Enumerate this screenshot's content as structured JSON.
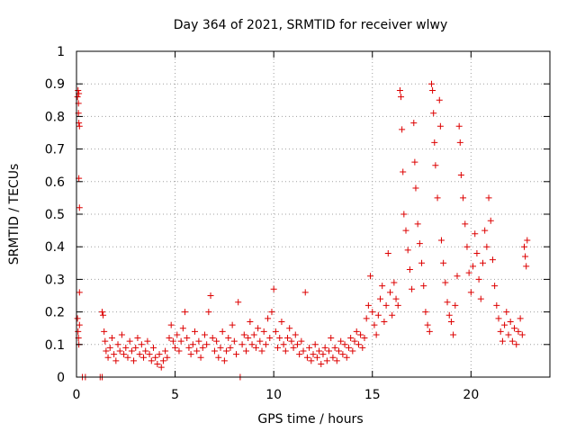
{
  "chart_data": {
    "type": "scatter",
    "title": "Day 364 of 2021, SRMTID for receiver wlwy",
    "xlabel": "GPS time / hours",
    "ylabel": "SRMTID / TECUs",
    "xlim": [
      0,
      24
    ],
    "ylim": [
      0,
      1
    ],
    "x_ticks": [
      0,
      5,
      10,
      15,
      20
    ],
    "x_tick_labels": [
      "0",
      "5",
      "10",
      "15",
      "20"
    ],
    "y_ticks": [
      0,
      0.1,
      0.2,
      0.3,
      0.4,
      0.5,
      0.6,
      0.7,
      0.8,
      0.9,
      1
    ],
    "y_tick_labels": [
      "0",
      "0.1",
      "0.2",
      "0.3",
      "0.4",
      "0.5",
      "0.6",
      "0.7",
      "0.8",
      "0.9",
      "1"
    ],
    "grid": true,
    "marker": "+",
    "color": "#dd0000",
    "series": [
      {
        "name": "SRMTID",
        "points": [
          [
            0.05,
            0.18
          ],
          [
            0.08,
            0.14
          ],
          [
            0.1,
            0.12
          ],
          [
            0.12,
            0.1
          ],
          [
            0.15,
            0.16
          ],
          [
            0.05,
            0.86
          ],
          [
            0.08,
            0.88
          ],
          [
            0.1,
            0.84
          ],
          [
            0.12,
            0.87
          ],
          [
            0.1,
            0.81
          ],
          [
            0.12,
            0.78
          ],
          [
            0.15,
            0.77
          ],
          [
            0.12,
            0.61
          ],
          [
            0.15,
            0.52
          ],
          [
            0.15,
            0.26
          ],
          [
            0.3,
            0.0
          ],
          [
            0.45,
            0.0
          ],
          [
            1.2,
            0.0
          ],
          [
            1.3,
            0.0
          ],
          [
            1.3,
            0.2
          ],
          [
            1.35,
            0.19
          ],
          [
            1.4,
            0.14
          ],
          [
            1.45,
            0.11
          ],
          [
            1.5,
            0.08
          ],
          [
            1.6,
            0.06
          ],
          [
            1.7,
            0.09
          ],
          [
            1.8,
            0.12
          ],
          [
            1.9,
            0.07
          ],
          [
            2.0,
            0.05
          ],
          [
            2.1,
            0.1
          ],
          [
            2.2,
            0.08
          ],
          [
            2.3,
            0.13
          ],
          [
            2.4,
            0.07
          ],
          [
            2.5,
            0.09
          ],
          [
            2.6,
            0.06
          ],
          [
            2.7,
            0.11
          ],
          [
            2.8,
            0.08
          ],
          [
            2.9,
            0.05
          ],
          [
            3.0,
            0.09
          ],
          [
            3.1,
            0.12
          ],
          [
            3.2,
            0.07
          ],
          [
            3.3,
            0.1
          ],
          [
            3.4,
            0.06
          ],
          [
            3.5,
            0.08
          ],
          [
            3.6,
            0.11
          ],
          [
            3.7,
            0.07
          ],
          [
            3.8,
            0.05
          ],
          [
            3.9,
            0.09
          ],
          [
            4.0,
            0.06
          ],
          [
            4.1,
            0.04
          ],
          [
            4.2,
            0.07
          ],
          [
            4.3,
            0.03
          ],
          [
            4.4,
            0.05
          ],
          [
            4.5,
            0.08
          ],
          [
            4.6,
            0.06
          ],
          [
            4.7,
            0.12
          ],
          [
            4.8,
            0.16
          ],
          [
            4.9,
            0.11
          ],
          [
            5.0,
            0.09
          ],
          [
            5.1,
            0.13
          ],
          [
            5.2,
            0.08
          ],
          [
            5.3,
            0.11
          ],
          [
            5.4,
            0.15
          ],
          [
            5.5,
            0.2
          ],
          [
            5.6,
            0.12
          ],
          [
            5.7,
            0.09
          ],
          [
            5.8,
            0.07
          ],
          [
            5.9,
            0.1
          ],
          [
            6.0,
            0.14
          ],
          [
            6.1,
            0.08
          ],
          [
            6.2,
            0.11
          ],
          [
            6.3,
            0.06
          ],
          [
            6.4,
            0.09
          ],
          [
            6.5,
            0.13
          ],
          [
            6.6,
            0.1
          ],
          [
            6.7,
            0.2
          ],
          [
            6.8,
            0.25
          ],
          [
            6.9,
            0.12
          ],
          [
            7.0,
            0.08
          ],
          [
            7.1,
            0.11
          ],
          [
            7.2,
            0.06
          ],
          [
            7.3,
            0.09
          ],
          [
            7.4,
            0.14
          ],
          [
            7.5,
            0.05
          ],
          [
            7.6,
            0.08
          ],
          [
            7.7,
            0.12
          ],
          [
            7.8,
            0.09
          ],
          [
            7.9,
            0.16
          ],
          [
            8.0,
            0.11
          ],
          [
            8.1,
            0.07
          ],
          [
            8.2,
            0.23
          ],
          [
            8.3,
            0.0
          ],
          [
            8.4,
            0.1
          ],
          [
            8.5,
            0.13
          ],
          [
            8.6,
            0.08
          ],
          [
            8.7,
            0.12
          ],
          [
            8.8,
            0.17
          ],
          [
            8.9,
            0.1
          ],
          [
            9.0,
            0.13
          ],
          [
            9.1,
            0.09
          ],
          [
            9.2,
            0.15
          ],
          [
            9.3,
            0.11
          ],
          [
            9.4,
            0.08
          ],
          [
            9.5,
            0.14
          ],
          [
            9.6,
            0.1
          ],
          [
            9.7,
            0.18
          ],
          [
            9.8,
            0.12
          ],
          [
            9.9,
            0.2
          ],
          [
            10.0,
            0.27
          ],
          [
            10.1,
            0.14
          ],
          [
            10.2,
            0.09
          ],
          [
            10.3,
            0.12
          ],
          [
            10.4,
            0.17
          ],
          [
            10.5,
            0.1
          ],
          [
            10.6,
            0.08
          ],
          [
            10.7,
            0.12
          ],
          [
            10.8,
            0.15
          ],
          [
            10.9,
            0.11
          ],
          [
            11.0,
            0.09
          ],
          [
            11.1,
            0.13
          ],
          [
            11.2,
            0.1
          ],
          [
            11.3,
            0.07
          ],
          [
            11.4,
            0.11
          ],
          [
            11.5,
            0.08
          ],
          [
            11.6,
            0.26
          ],
          [
            11.7,
            0.06
          ],
          [
            11.8,
            0.09
          ],
          [
            11.9,
            0.05
          ],
          [
            12.0,
            0.07
          ],
          [
            12.1,
            0.1
          ],
          [
            12.2,
            0.06
          ],
          [
            12.3,
            0.08
          ],
          [
            12.4,
            0.04
          ],
          [
            12.5,
            0.07
          ],
          [
            12.6,
            0.09
          ],
          [
            12.7,
            0.05
          ],
          [
            12.8,
            0.08
          ],
          [
            12.9,
            0.12
          ],
          [
            13.0,
            0.06
          ],
          [
            13.1,
            0.09
          ],
          [
            13.2,
            0.05
          ],
          [
            13.3,
            0.08
          ],
          [
            13.4,
            0.11
          ],
          [
            13.5,
            0.07
          ],
          [
            13.6,
            0.1
          ],
          [
            13.7,
            0.06
          ],
          [
            13.8,
            0.09
          ],
          [
            13.9,
            0.12
          ],
          [
            14.0,
            0.08
          ],
          [
            14.1,
            0.11
          ],
          [
            14.2,
            0.14
          ],
          [
            14.3,
            0.1
          ],
          [
            14.4,
            0.13
          ],
          [
            14.5,
            0.09
          ],
          [
            14.6,
            0.12
          ],
          [
            14.7,
            0.18
          ],
          [
            14.8,
            0.22
          ],
          [
            14.9,
            0.31
          ],
          [
            15.0,
            0.2
          ],
          [
            15.1,
            0.16
          ],
          [
            15.2,
            0.13
          ],
          [
            15.3,
            0.19
          ],
          [
            15.4,
            0.24
          ],
          [
            15.5,
            0.28
          ],
          [
            15.6,
            0.17
          ],
          [
            15.7,
            0.22
          ],
          [
            15.8,
            0.38
          ],
          [
            15.9,
            0.26
          ],
          [
            16.0,
            0.19
          ],
          [
            16.1,
            0.29
          ],
          [
            16.2,
            0.24
          ],
          [
            16.3,
            0.22
          ],
          [
            16.4,
            0.88
          ],
          [
            16.45,
            0.86
          ],
          [
            16.5,
            0.76
          ],
          [
            16.55,
            0.63
          ],
          [
            16.6,
            0.5
          ],
          [
            16.7,
            0.45
          ],
          [
            16.8,
            0.39
          ],
          [
            16.9,
            0.33
          ],
          [
            17.0,
            0.27
          ],
          [
            17.1,
            0.78
          ],
          [
            17.15,
            0.66
          ],
          [
            17.2,
            0.58
          ],
          [
            17.3,
            0.47
          ],
          [
            17.4,
            0.41
          ],
          [
            17.5,
            0.35
          ],
          [
            17.6,
            0.28
          ],
          [
            17.7,
            0.2
          ],
          [
            17.8,
            0.16
          ],
          [
            17.9,
            0.14
          ],
          [
            18.0,
            0.9
          ],
          [
            18.05,
            0.88
          ],
          [
            18.1,
            0.81
          ],
          [
            18.15,
            0.72
          ],
          [
            18.2,
            0.65
          ],
          [
            18.3,
            0.55
          ],
          [
            18.4,
            0.85
          ],
          [
            18.45,
            0.77
          ],
          [
            18.5,
            0.42
          ],
          [
            18.6,
            0.35
          ],
          [
            18.7,
            0.29
          ],
          [
            18.8,
            0.23
          ],
          [
            18.9,
            0.19
          ],
          [
            19.0,
            0.17
          ],
          [
            19.1,
            0.13
          ],
          [
            19.2,
            0.22
          ],
          [
            19.3,
            0.31
          ],
          [
            19.4,
            0.77
          ],
          [
            19.45,
            0.72
          ],
          [
            19.5,
            0.62
          ],
          [
            19.6,
            0.55
          ],
          [
            19.7,
            0.47
          ],
          [
            19.8,
            0.4
          ],
          [
            19.9,
            0.32
          ],
          [
            20.0,
            0.26
          ],
          [
            20.1,
            0.34
          ],
          [
            20.2,
            0.44
          ],
          [
            20.3,
            0.38
          ],
          [
            20.4,
            0.3
          ],
          [
            20.5,
            0.24
          ],
          [
            20.6,
            0.35
          ],
          [
            20.7,
            0.45
          ],
          [
            20.8,
            0.4
          ],
          [
            20.9,
            0.55
          ],
          [
            21.0,
            0.48
          ],
          [
            21.1,
            0.36
          ],
          [
            21.2,
            0.28
          ],
          [
            21.3,
            0.22
          ],
          [
            21.4,
            0.18
          ],
          [
            21.5,
            0.14
          ],
          [
            21.6,
            0.11
          ],
          [
            21.7,
            0.16
          ],
          [
            21.8,
            0.2
          ],
          [
            21.9,
            0.13
          ],
          [
            22.0,
            0.17
          ],
          [
            22.1,
            0.11
          ],
          [
            22.2,
            0.15
          ],
          [
            22.3,
            0.1
          ],
          [
            22.4,
            0.14
          ],
          [
            22.5,
            0.18
          ],
          [
            22.6,
            0.13
          ],
          [
            22.7,
            0.4
          ],
          [
            22.75,
            0.37
          ],
          [
            22.8,
            0.34
          ],
          [
            22.85,
            0.42
          ]
        ]
      }
    ]
  }
}
